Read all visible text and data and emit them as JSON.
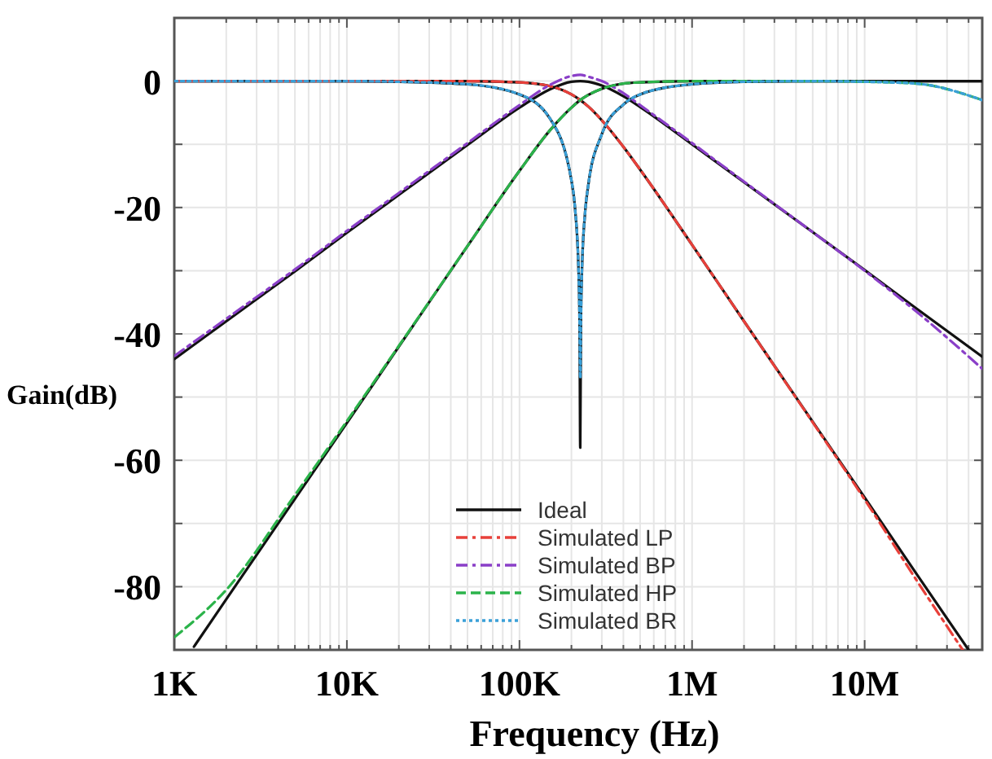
{
  "chart_data": {
    "type": "line",
    "xlabel": "Frequency (Hz)",
    "ylabel": "Gain(dB)",
    "log": "x",
    "xlim": [
      1000,
      48000000
    ],
    "ylim": [
      -90,
      10
    ],
    "xticks": [
      {
        "value": 1000,
        "label": "1K"
      },
      {
        "value": 2000,
        "label": null
      },
      {
        "value": 3000,
        "label": null
      },
      {
        "value": 4000,
        "label": null
      },
      {
        "value": 5000,
        "label": null
      },
      {
        "value": 6000,
        "label": null
      },
      {
        "value": 7000,
        "label": null
      },
      {
        "value": 8000,
        "label": null
      },
      {
        "value": 9000,
        "label": null
      },
      {
        "value": 10000,
        "label": "10K"
      },
      {
        "value": 20000,
        "label": null
      },
      {
        "value": 30000,
        "label": null
      },
      {
        "value": 40000,
        "label": null
      },
      {
        "value": 50000,
        "label": null
      },
      {
        "value": 60000,
        "label": null
      },
      {
        "value": 70000,
        "label": null
      },
      {
        "value": 80000,
        "label": null
      },
      {
        "value": 90000,
        "label": null
      },
      {
        "value": 100000,
        "label": "100K"
      },
      {
        "value": 200000,
        "label": null
      },
      {
        "value": 300000,
        "label": null
      },
      {
        "value": 400000,
        "label": null
      },
      {
        "value": 500000,
        "label": null
      },
      {
        "value": 600000,
        "label": null
      },
      {
        "value": 700000,
        "label": null
      },
      {
        "value": 800000,
        "label": null
      },
      {
        "value": 900000,
        "label": null
      },
      {
        "value": 1000000,
        "label": "1M"
      },
      {
        "value": 2000000,
        "label": null
      },
      {
        "value": 3000000,
        "label": null
      },
      {
        "value": 4000000,
        "label": null
      },
      {
        "value": 5000000,
        "label": null
      },
      {
        "value": 6000000,
        "label": null
      },
      {
        "value": 7000000,
        "label": null
      },
      {
        "value": 8000000,
        "label": null
      },
      {
        "value": 9000000,
        "label": null
      },
      {
        "value": 10000000,
        "label": "10M"
      },
      {
        "value": 20000000,
        "label": null
      },
      {
        "value": 30000000,
        "label": null
      },
      {
        "value": 40000000,
        "label": null
      }
    ],
    "yticks": [
      {
        "value": 10,
        "label": null
      },
      0,
      {
        "value": -10,
        "label": null
      },
      -20,
      {
        "value": -30,
        "label": null
      },
      -40,
      {
        "value": -50,
        "label": null
      },
      -60,
      {
        "value": -70,
        "label": null
      },
      -80,
      {
        "value": -90,
        "label": null
      }
    ],
    "grid": true,
    "legend": "bottom",
    "marker": "none",
    "line_style": "solid",
    "series": [
      {
        "name": "Ideal",
        "color": "#111111",
        "x": [
          1000,
          2000,
          5000,
          10000,
          20000,
          50000,
          100000,
          150000,
          200000,
          225000,
          250000,
          300000,
          400000,
          500000,
          1000000,
          2000000,
          5000000,
          10000000,
          20000000,
          40000000
        ],
        "values": [
          0,
          0,
          0,
          0,
          0,
          0,
          -0.2,
          -0.8,
          -2.1,
          -3,
          -4,
          -6.2,
          -10.4,
          -14,
          -25.9,
          -38,
          -53.9,
          -65.9,
          -78,
          -90
        ]
      },
      {
        "color": "#111111",
        "x": [
          1000,
          2000,
          5000,
          10000,
          20000,
          50000,
          100000,
          150000,
          200000,
          225000,
          250000,
          300000,
          400000,
          500000,
          1000000,
          2000000,
          5000000,
          10000000,
          20000000,
          48000000
        ],
        "values": [
          -44,
          -38,
          -30.1,
          -24,
          -18,
          -10.1,
          -4.2,
          -1.3,
          -0.1,
          0,
          -0.1,
          -0.7,
          -2.4,
          -4.1,
          -10,
          -16,
          -23.9,
          -29.9,
          -36,
          -43.6
        ]
      },
      {
        "color": "#111111",
        "x": [
          1300,
          2000,
          5000,
          10000,
          20000,
          50000,
          100000,
          150000,
          200000,
          225000,
          250000,
          300000,
          400000,
          500000,
          1000000,
          2000000,
          5000000,
          10000000,
          20000000,
          48000000
        ],
        "values": [
          -89.5,
          -82,
          -66.1,
          -54.1,
          -42,
          -26.1,
          -14.2,
          -7.8,
          -4.2,
          -3,
          -2.2,
          -1.2,
          -0.4,
          -0.2,
          0,
          0,
          0,
          0,
          0,
          0
        ]
      },
      {
        "color": "#111111",
        "x": [
          1000,
          10000,
          20000,
          50000,
          100000,
          150000,
          200000,
          210000,
          220000,
          223000,
          225000,
          227000,
          230000,
          240000,
          250000,
          300000,
          400000,
          500000,
          1000000,
          2000000,
          5000000,
          48000000
        ],
        "values": [
          0,
          0,
          -0.1,
          -0.5,
          -2.1,
          -5.9,
          -15.7,
          -20.2,
          -30,
          -38,
          -58,
          -38.1,
          -30.2,
          -20.8,
          -16.6,
          -8.4,
          -3.7,
          -2.1,
          -0.5,
          -0.1,
          0,
          0
        ]
      },
      {
        "name": "Simulated LP",
        "color": "#e8403a",
        "line_style": "dashdot",
        "x": [
          1000,
          10000,
          50000,
          100000,
          150000,
          200000,
          225000,
          250000,
          300000,
          400000,
          500000,
          1000000,
          2000000,
          5000000,
          10000000,
          20000000,
          37000000
        ],
        "values": [
          0,
          0,
          0,
          -0.2,
          -0.8,
          -2.1,
          -3,
          -4,
          -6.2,
          -10.4,
          -14,
          -25.9,
          -38,
          -54,
          -66.2,
          -79,
          -90
        ]
      },
      {
        "name": "Simulated BP",
        "color": "#8a3fc8",
        "line_style": "dashdot",
        "x": [
          1000,
          2000,
          5000,
          10000,
          20000,
          50000,
          100000,
          150000,
          200000,
          225000,
          250000,
          300000,
          400000,
          500000,
          1000000,
          2000000,
          5000000,
          10000000,
          20000000,
          48000000
        ],
        "values": [
          -43.5,
          -37.6,
          -29.8,
          -23.7,
          -17.7,
          -9.8,
          -3.8,
          -0.6,
          0.8,
          1,
          0.7,
          0,
          -1.9,
          -3.8,
          -9.8,
          -15.9,
          -23.9,
          -30,
          -36.5,
          -45.5
        ]
      },
      {
        "name": "Simulated HP",
        "color": "#2bb34a",
        "line_style": "dashed",
        "x": [
          1000,
          2000,
          5000,
          10000,
          20000,
          50000,
          100000,
          150000,
          200000,
          225000,
          250000,
          300000,
          400000,
          500000,
          1000000,
          2000000,
          5000000,
          10000000,
          20000000,
          48000000
        ],
        "values": [
          -88,
          -80.5,
          -65.5,
          -53.8,
          -41.9,
          -26.1,
          -14.2,
          -7.8,
          -4.2,
          -3,
          -2.2,
          -1.2,
          -0.4,
          -0.2,
          0,
          0,
          0,
          -0.1,
          -0.4,
          -3
        ]
      },
      {
        "name": "Simulated BR",
        "color": "#3aa0d8",
        "line_style": "dotted",
        "x": [
          1000,
          10000,
          20000,
          50000,
          100000,
          150000,
          200000,
          210000,
          220000,
          223000,
          225000,
          227000,
          230000,
          240000,
          250000,
          300000,
          400000,
          500000,
          1000000,
          2000000,
          5000000,
          10000000,
          20000000,
          48000000
        ],
        "values": [
          0,
          0,
          -0.1,
          -0.5,
          -2.1,
          -5.9,
          -15.7,
          -20.2,
          -30,
          -38,
          -47,
          -38.1,
          -30.2,
          -20.8,
          -16.6,
          -8.4,
          -3.7,
          -2.1,
          -0.5,
          -0.1,
          0,
          -0.1,
          -0.4,
          -3
        ]
      }
    ]
  }
}
